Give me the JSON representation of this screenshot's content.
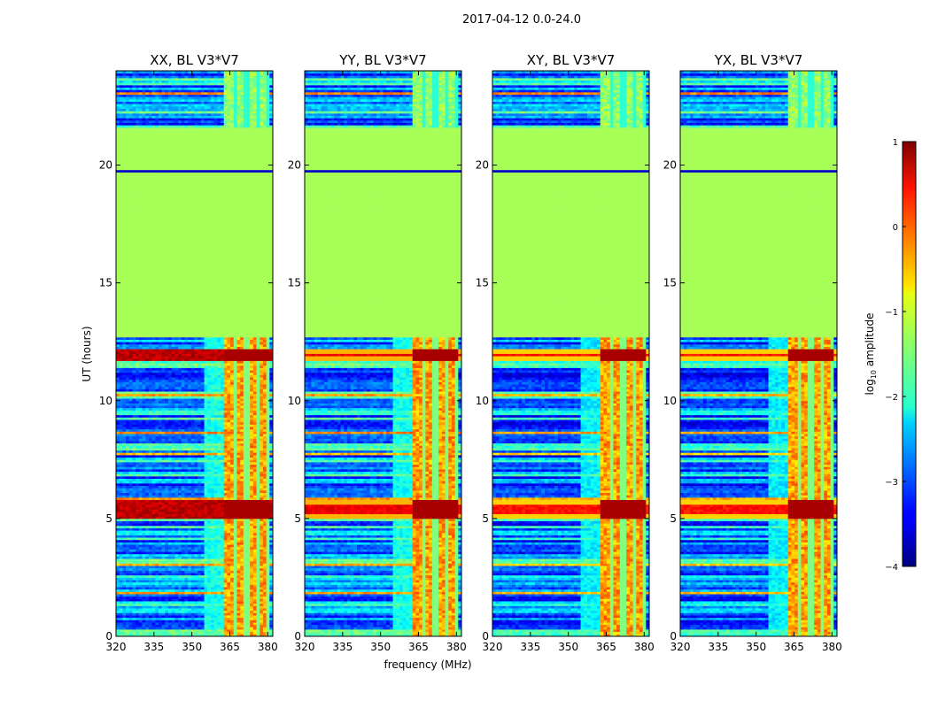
{
  "chart_data": {
    "type": "heatmap",
    "title": "2017-04-12 0.0-24.0",
    "xlabel": "frequency (MHz)",
    "ylabel": "UT (hours)",
    "xlim": [
      320,
      382
    ],
    "ylim": [
      0,
      24
    ],
    "xticks": [
      320,
      335,
      350,
      365,
      380
    ],
    "yticks": [
      0,
      5,
      10,
      15,
      20
    ],
    "panels": [
      {
        "title": "XX, BL V3*V7"
      },
      {
        "title": "YY, BL V3*V7"
      },
      {
        "title": "XY, BL V3*V7"
      },
      {
        "title": "YX, BL V3*V7"
      }
    ],
    "colorbar": {
      "label": "log10 amplitude",
      "label_main": "log",
      "label_sub": "10",
      "label_rest": " amplitude",
      "min": -4,
      "max": 1,
      "ticks": [
        "1",
        "0",
        "−1",
        "−2",
        "−3",
        "−4"
      ],
      "colormap": "jet"
    },
    "features": {
      "flagged_band_hours": [
        12.7,
        21.6
      ],
      "flag_value": -1.3,
      "rfi_band_mhz": [
        362,
        381
      ],
      "strong_rfi_hours": [
        [
          5.0,
          5.8
        ],
        [
          11.75,
          12.2
        ]
      ]
    }
  }
}
